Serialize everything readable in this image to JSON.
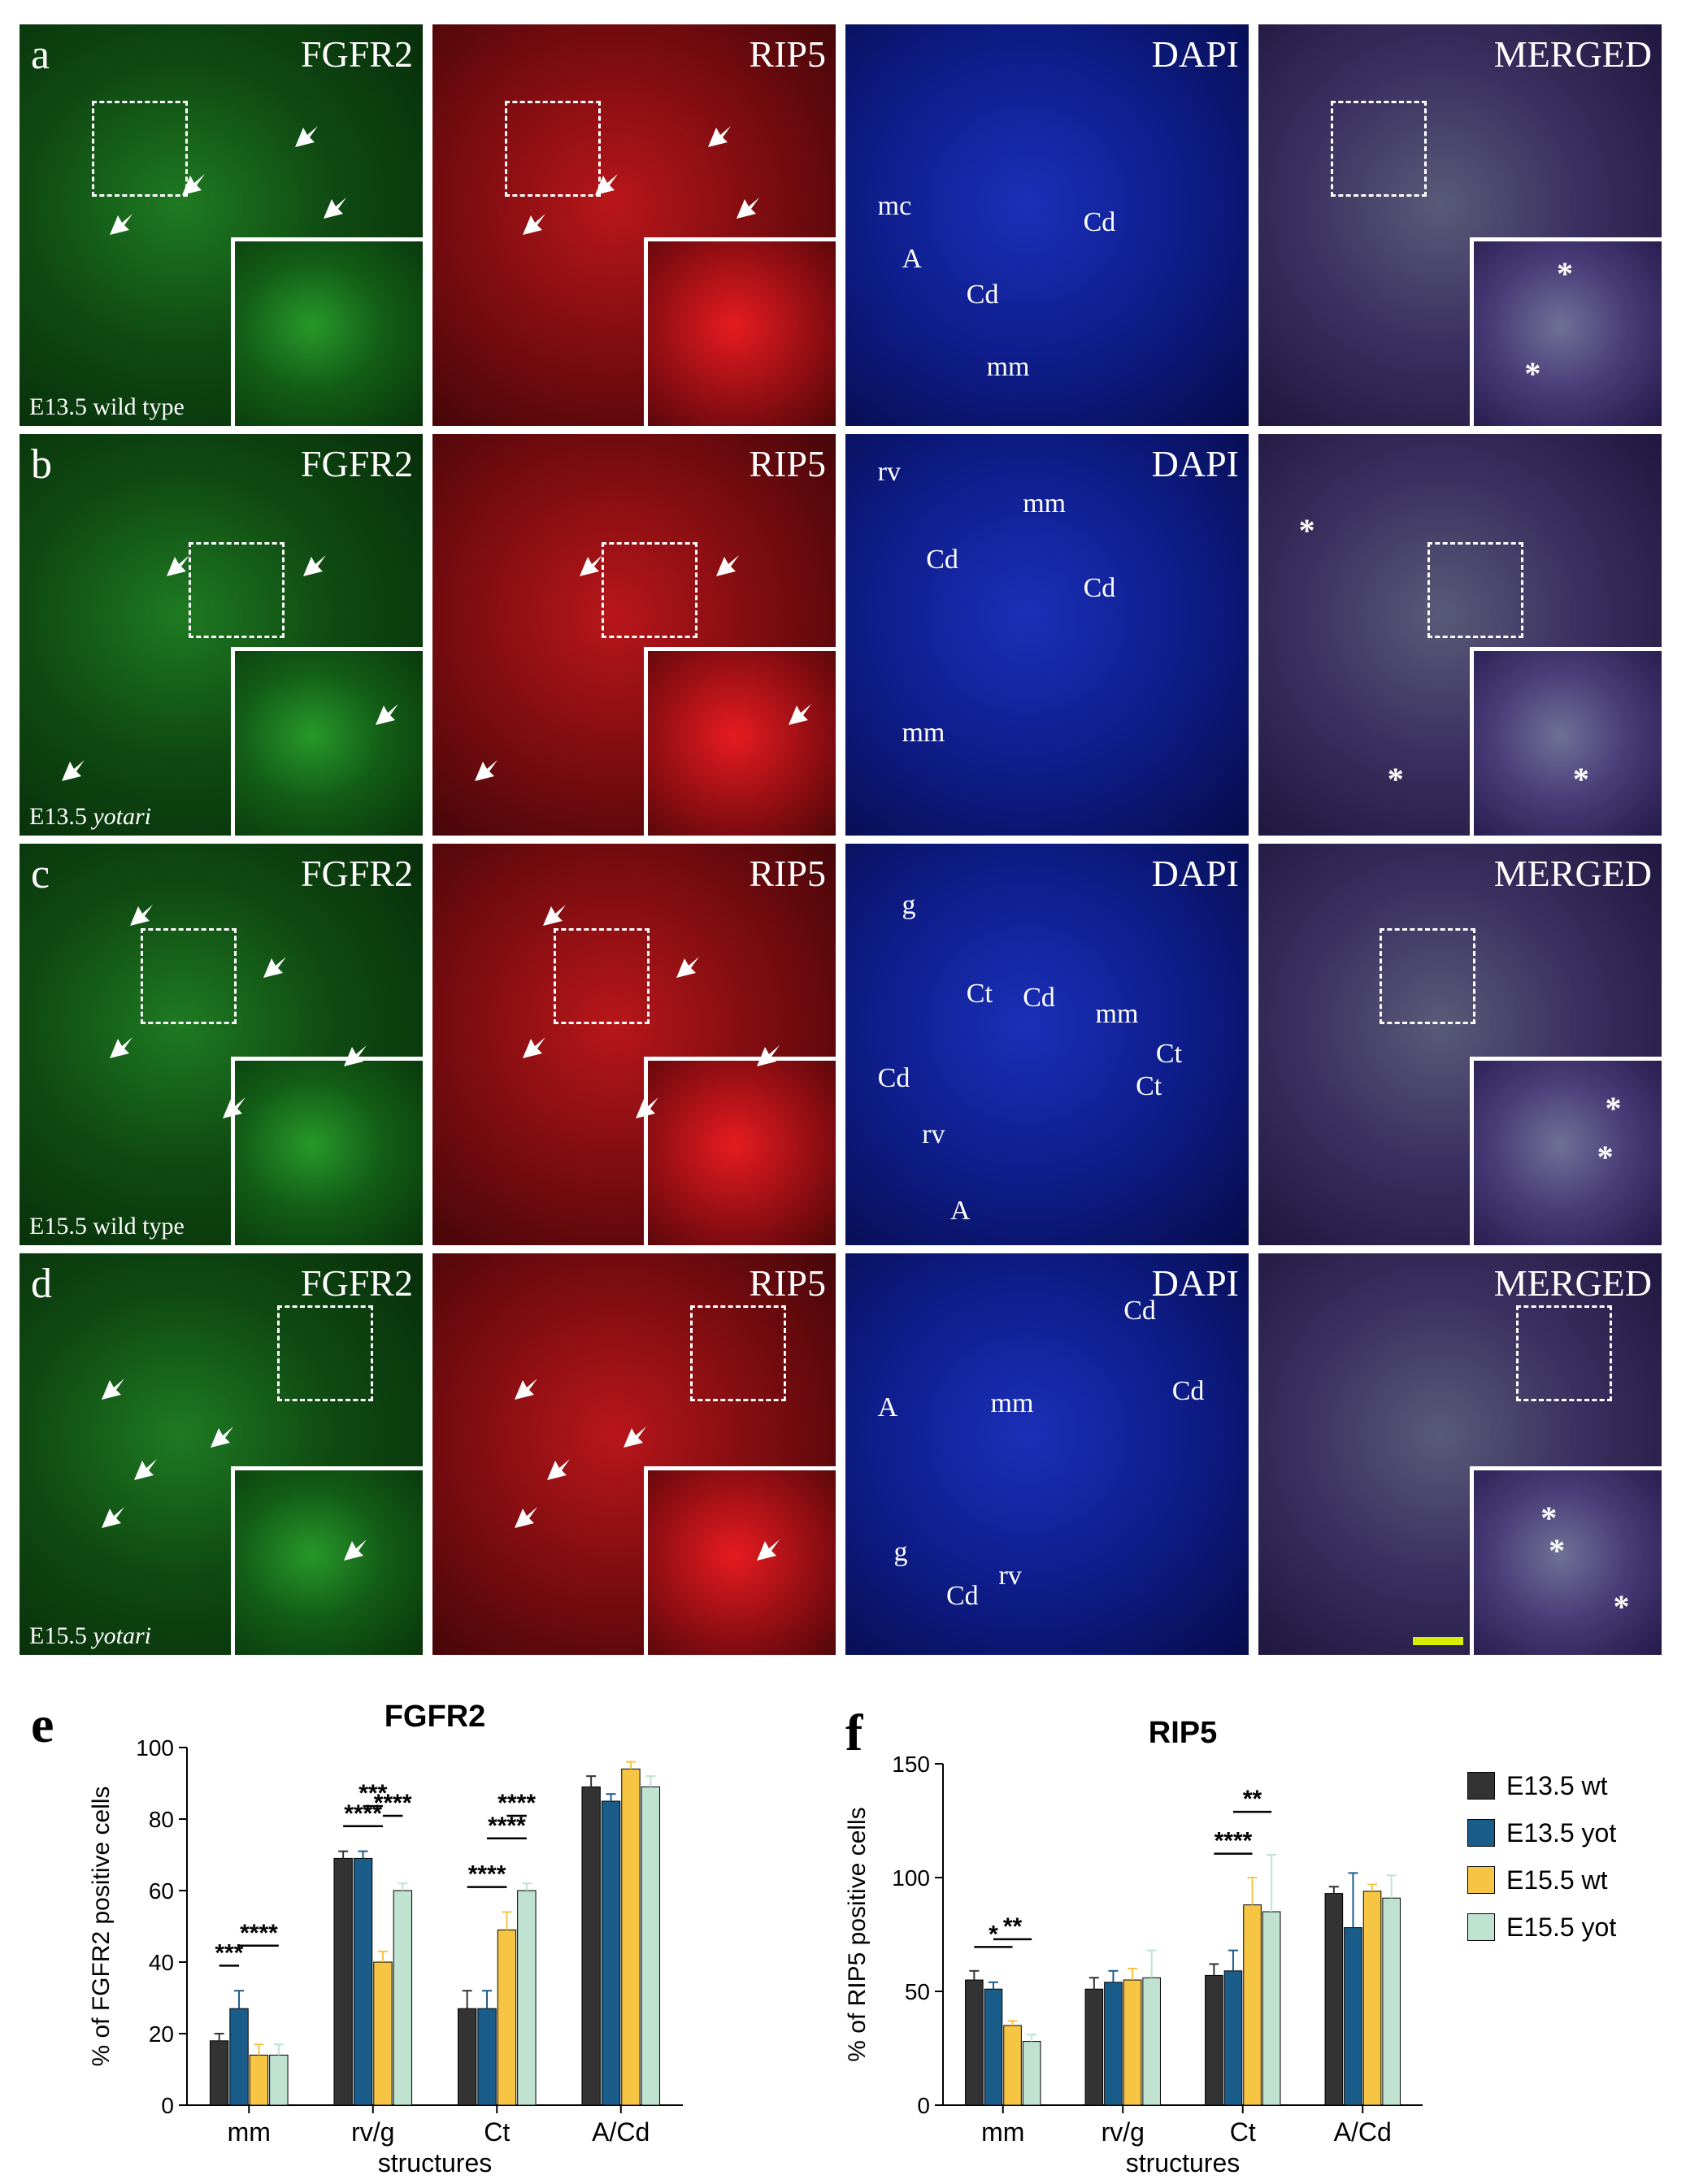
{
  "rows": [
    {
      "letter": "a",
      "condition_prefix": "E13.5",
      "condition_genotype": "wild type",
      "genotype_italic": false,
      "channels": [
        "FGFR2",
        "RIP5",
        "DAPI",
        "MERGED"
      ],
      "dapi_labels": [
        "mc",
        "A",
        "Cd",
        "Cd",
        "mm"
      ]
    },
    {
      "letter": "b",
      "condition_prefix": "E13.5",
      "condition_genotype": "yotari",
      "genotype_italic": true,
      "channels": [
        "FGFR2",
        "RIP5",
        "DAPI",
        ""
      ],
      "dapi_labels": [
        "rv",
        "mm",
        "Cd",
        "Cd",
        "mm"
      ]
    },
    {
      "letter": "c",
      "condition_prefix": "E15.5",
      "condition_genotype": "wild type",
      "genotype_italic": false,
      "channels": [
        "FGFR2",
        "RIP5",
        "DAPI",
        "MERGED"
      ],
      "dapi_labels": [
        "g",
        "Ct",
        "Cd",
        "mm",
        "Ct",
        "Ct",
        "Cd",
        "rv",
        "A"
      ]
    },
    {
      "letter": "d",
      "condition_prefix": "E15.5",
      "condition_genotype": "yotari",
      "genotype_italic": true,
      "channels": [
        "FGFR2",
        "RIP5",
        "DAPI",
        "MERGED"
      ],
      "dapi_labels": [
        "Cd",
        "Cd",
        "A",
        "mm",
        "g",
        "rv",
        "Cd"
      ]
    }
  ],
  "channel_colors": {
    "FGFR2": "#0f4f12",
    "RIP5": "#8a0f12",
    "DAPI": "#0d1a8a",
    "MERGED": "#3a3a55"
  },
  "star_symbol": "*",
  "chart_data": [
    {
      "panel_letter": "e",
      "type": "bar",
      "title": "FGFR2",
      "xlabel": "structures",
      "ylabel": "% of FGFR2 positive cells",
      "ylim": [
        0,
        100
      ],
      "yticks": [
        0,
        20,
        40,
        60,
        80,
        100
      ],
      "categories": [
        "mm",
        "rv/g",
        "Ct",
        "A/Cd"
      ],
      "series": [
        {
          "name": "E13.5 wt",
          "color": "#333333",
          "values": [
            18,
            69,
            27,
            89
          ],
          "errors": [
            2,
            2,
            5,
            3
          ]
        },
        {
          "name": "E13.5 yot",
          "color": "#1a5d8a",
          "values": [
            27,
            69,
            27,
            85
          ],
          "errors": [
            5,
            2,
            5,
            2
          ]
        },
        {
          "name": "E15.5 wt",
          "color": "#f6c544",
          "values": [
            14,
            40,
            49,
            94
          ],
          "errors": [
            3,
            3,
            5,
            2
          ]
        },
        {
          "name": "E15.5 yot",
          "color": "#bfe3d0",
          "values": [
            14,
            60,
            60,
            89
          ],
          "errors": [
            3,
            2,
            2,
            3
          ]
        }
      ],
      "significance": [
        {
          "category": "mm",
          "from": 0,
          "to": 1,
          "label": "***"
        },
        {
          "category": "mm",
          "from": 1,
          "to": 3,
          "label": "****"
        },
        {
          "category": "rv/g",
          "from": 0,
          "to": 2,
          "label": "****"
        },
        {
          "category": "rv/g",
          "from": 1,
          "to": 2,
          "label": "***"
        },
        {
          "category": "rv/g",
          "from": 2,
          "to": 3,
          "label": "****"
        },
        {
          "category": "Ct",
          "from": 0,
          "to": 2,
          "label": "****"
        },
        {
          "category": "Ct",
          "from": 1,
          "to": 3,
          "label": "****"
        },
        {
          "category": "Ct",
          "from": 2,
          "to": 3,
          "label": "****"
        }
      ]
    },
    {
      "panel_letter": "f",
      "type": "bar",
      "title": "RIP5",
      "xlabel": "structures",
      "ylabel": "% of RIP5 positive cells",
      "ylim": [
        0,
        150
      ],
      "yticks": [
        0,
        50,
        100,
        150
      ],
      "categories": [
        "mm",
        "rv/g",
        "Ct",
        "A/Cd"
      ],
      "series": [
        {
          "name": "E13.5 wt",
          "color": "#333333",
          "values": [
            55,
            51,
            57,
            93
          ],
          "errors": [
            4,
            5,
            5,
            3
          ]
        },
        {
          "name": "E13.5 yot",
          "color": "#1a5d8a",
          "values": [
            51,
            54,
            59,
            78
          ],
          "errors": [
            3,
            5,
            9,
            24
          ]
        },
        {
          "name": "E15.5 wt",
          "color": "#f6c544",
          "values": [
            35,
            55,
            88,
            94
          ],
          "errors": [
            2,
            5,
            12,
            3
          ]
        },
        {
          "name": "E15.5 yot",
          "color": "#bfe3d0",
          "values": [
            28,
            56,
            85,
            91
          ],
          "errors": [
            3,
            12,
            25,
            10
          ]
        }
      ],
      "significance": [
        {
          "category": "mm",
          "from": 0,
          "to": 2,
          "label": "*"
        },
        {
          "category": "mm",
          "from": 1,
          "to": 3,
          "label": "**"
        },
        {
          "category": "Ct",
          "from": 0,
          "to": 2,
          "label": "****"
        },
        {
          "category": "Ct",
          "from": 1,
          "to": 3,
          "label": "**"
        }
      ]
    }
  ],
  "legend": {
    "placement": "right",
    "items": [
      "E13.5 wt",
      "E13.5 yot",
      "E15.5 wt",
      "E15.5 yot"
    ],
    "colors": [
      "#333333",
      "#1a5d8a",
      "#f6c544",
      "#bfe3d0"
    ]
  }
}
